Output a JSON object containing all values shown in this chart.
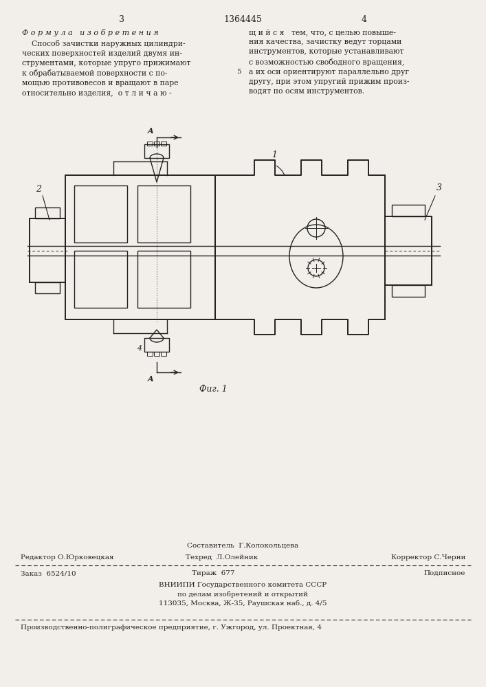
{
  "bg_color": "#f2efea",
  "page_num_left": "3",
  "page_num_center": "1364445",
  "page_num_right": "4",
  "col_left_title": "Ф о р м у л а   и з о б р е т е н и я",
  "col_left_text": "    Способ зачистки наружных цилиндри-\nческих поверхностей изделий двумя ин-\nструментами, которые упруго прижимают\nк обрабатываемой поверхности с по-\nмощью противовесов и вращают в паре\nотносительно изделия,  о т л и ч а ю -",
  "col_right_text": "щ и й с я   тем, что, с целью повыше-\nния качества, зачистку ведут торцами\nинструментов, которые устанавливают\nс возможностью свободного вращения,\nа их оси ориентируют параллельно друг\nдругу, при этом упругий прижим произ-\nводят по осям инструментов.",
  "fig_label": "Фиг. 1",
  "footer_constituter": "Составитель  Г.Колокольцева",
  "footer_editor": "Редактор О.Юрковецкая",
  "footer_techred": "Техред  Л.Олейник",
  "footer_corrector": "Корректор С.Черни",
  "footer_order": "Заказ  6524/10",
  "footer_tirazh": "Тираж  677",
  "footer_podpisnoe": "Подписное",
  "footer_vniipи": "ВНИИПИ Государственного комитета СССР\nпо делам изобретений и открытий\n113035, Москва, Ж-35, Раушская наб., д. 4/5",
  "footer_prod": "Производственно-полиграфическое предприятие, г. Ужгород, ул. Проектная, 4"
}
